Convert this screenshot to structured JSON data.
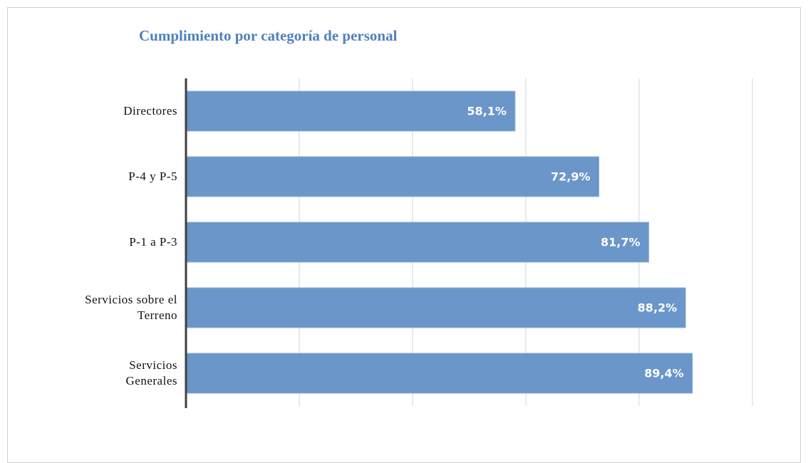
{
  "chart_data": {
    "type": "barh",
    "title": "Cumplimiento por categoría de personal",
    "categories": [
      "Directores",
      "P-4 y P-5",
      "P-1 a P-3",
      "Servicios sobre el Terreno",
      "Servicios Generales"
    ],
    "values": [
      58.1,
      72.9,
      81.7,
      88.2,
      89.4
    ],
    "value_labels": [
      "58,1%",
      "72,9%",
      "81,7%",
      "88,2%",
      "89,4%"
    ],
    "color": "#6a96c9",
    "xlim": [
      0,
      100
    ],
    "xticks": [
      0,
      20,
      40,
      60,
      80,
      100
    ],
    "grid": true
  }
}
